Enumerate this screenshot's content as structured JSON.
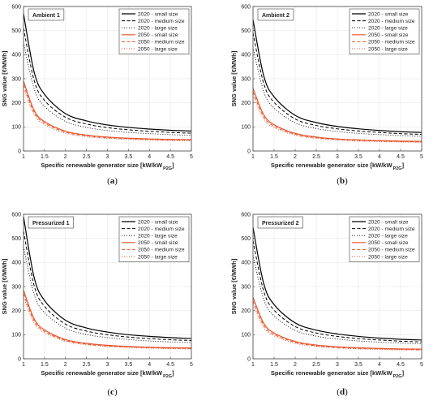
{
  "colors": {
    "series_2020": "#000000",
    "series_2050": "#e8532b",
    "frame": "#444444",
    "grid": "#e3e3e3"
  },
  "panels": [
    {
      "caption": {
        "open": "(",
        "letter": "a",
        "close": ")"
      },
      "chart_data": {
        "type": "line",
        "title": "Ambient 1",
        "xlabel": "Specific renewable generator size [kW/kW",
        "xlabel_sub": "P2G",
        "xlabel_close": "]",
        "ylabel": "SNG value [€/MWh]",
        "xlim": [
          1,
          5
        ],
        "ylim": [
          0,
          600
        ],
        "xticks": [
          "1",
          "1.5",
          "2",
          "2.5",
          "3",
          "3.5",
          "4",
          "4.5",
          "5"
        ],
        "yticks": [
          "0",
          "100",
          "200",
          "300",
          "400",
          "500",
          "600"
        ],
        "grid": true,
        "legend_position": "top-right",
        "x": [
          1,
          1.25,
          1.5,
          2,
          2.5,
          3,
          3.5,
          4,
          4.5,
          5
        ],
        "series": [
          {
            "name": "2020 - small size",
            "values": [
              570,
              330,
              235,
              155,
              125,
              108,
              98,
              91,
              86,
              83
            ]
          },
          {
            "name": "2020 - medium size",
            "values": [
              510,
              295,
              210,
              140,
              112,
              97,
              88,
              82,
              77,
              74
            ]
          },
          {
            "name": "2020 - large size",
            "values": [
              450,
              260,
              185,
              123,
              98,
              85,
              77,
              72,
              68,
              65
            ]
          },
          {
            "name": "2050 - small size",
            "values": [
              290,
              170,
              122,
              82,
              66,
              58,
              53,
              50,
              48,
              47
            ]
          },
          {
            "name": "2050 - medium size",
            "values": [
              275,
              161,
              116,
              78,
              63,
              55,
              51,
              48,
              46,
              45
            ]
          },
          {
            "name": "2050 - large size",
            "values": [
              260,
              152,
              109,
              73,
              59,
              52,
              48,
              45,
              43,
              42
            ]
          }
        ]
      }
    },
    {
      "caption": {
        "open": "(",
        "letter": "b",
        "close": ")"
      },
      "chart_data": {
        "type": "line",
        "title": "Ambient 2",
        "xlabel": "Specific renewable generator size [kW/kW",
        "xlabel_sub": "P2G",
        "xlabel_close": "]",
        "ylabel": "SNG value [€/MWh]",
        "xlim": [
          1,
          5
        ],
        "ylim": [
          0,
          600
        ],
        "xticks": [
          "1",
          "1.5",
          "2",
          "2.5",
          "3",
          "3.5",
          "4",
          "4.5",
          "5"
        ],
        "yticks": [
          "0",
          "100",
          "200",
          "300",
          "400",
          "500",
          "600"
        ],
        "grid": true,
        "legend_position": "top-right",
        "x": [
          1,
          1.25,
          1.5,
          2,
          2.5,
          3,
          3.5,
          4,
          4.5,
          5
        ],
        "series": [
          {
            "name": "2020 - small size",
            "values": [
              545,
              315,
              225,
              148,
              118,
              102,
              92,
              85,
              80,
              77
            ]
          },
          {
            "name": "2020 - medium size",
            "values": [
              490,
              283,
              202,
              133,
              106,
              92,
              83,
              77,
              72,
              69
            ]
          },
          {
            "name": "2020 - large size",
            "values": [
              430,
              249,
              178,
              117,
              93,
              81,
              73,
              68,
              64,
              61
            ]
          },
          {
            "name": "2050 - small size",
            "values": [
              260,
              152,
              109,
              73,
              58,
              50,
              46,
              43,
              41,
              40
            ]
          },
          {
            "name": "2050 - medium size",
            "values": [
              245,
              143,
              103,
              69,
              55,
              48,
              44,
              41,
              39,
              38
            ]
          },
          {
            "name": "2050 - large size",
            "values": [
              230,
              134,
              97,
              65,
              52,
              45,
              41,
              39,
              37,
              36
            ]
          }
        ]
      }
    },
    {
      "caption": {
        "open": "(",
        "letter": "c",
        "close": ")"
      },
      "chart_data": {
        "type": "line",
        "title": "Pressurized 1",
        "xlabel": "Specific renewable generator size [kW/kW",
        "xlabel_sub": "P2G",
        "xlabel_close": "]",
        "ylabel": "SNG value [€/MWh]",
        "xlim": [
          1,
          5
        ],
        "ylim": [
          0,
          600
        ],
        "xticks": [
          "1",
          "1.5",
          "2",
          "2.5",
          "3",
          "3.5",
          "4",
          "4.5",
          "5"
        ],
        "yticks": [
          "0",
          "100",
          "200",
          "300",
          "400",
          "500",
          "600"
        ],
        "grid": true,
        "legend_position": "top-right",
        "x": [
          1,
          1.25,
          1.5,
          2,
          2.5,
          3,
          3.5,
          4,
          4.5,
          5
        ],
        "series": [
          {
            "name": "2020 - small size",
            "values": [
              590,
              340,
              242,
              160,
              128,
              111,
              100,
              93,
              88,
              84
            ]
          },
          {
            "name": "2020 - medium size",
            "values": [
              530,
              306,
              218,
              144,
              115,
              100,
              90,
              84,
              79,
              76
            ]
          },
          {
            "name": "2020 - large size",
            "values": [
              465,
              269,
              192,
              127,
              101,
              88,
              80,
              74,
              70,
              67
            ]
          },
          {
            "name": "2050 - small size",
            "values": [
              285,
              167,
              120,
              80,
              64,
              56,
              51,
              48,
              46,
              45
            ]
          },
          {
            "name": "2050 - medium size",
            "values": [
              270,
              158,
              114,
              76,
              61,
              53,
              49,
              46,
              44,
              43
            ]
          },
          {
            "name": "2050 - large size",
            "values": [
              255,
              149,
              108,
              72,
              58,
              51,
              47,
              44,
              42,
              41
            ]
          }
        ]
      }
    },
    {
      "caption": {
        "open": "(",
        "letter": "d",
        "close": ")"
      },
      "chart_data": {
        "type": "line",
        "title": "Pressurized 2",
        "xlabel": "Specific renewable generator size [kW/kW",
        "xlabel_sub": "P2G",
        "xlabel_close": "]",
        "ylabel": "SNG value [€/MWh]",
        "xlim": [
          1,
          5
        ],
        "ylim": [
          0,
          600
        ],
        "xticks": [
          "1",
          "1.5",
          "2",
          "2.5",
          "3",
          "3.5",
          "4",
          "4.5",
          "5"
        ],
        "yticks": [
          "0",
          "100",
          "200",
          "300",
          "400",
          "500",
          "600"
        ],
        "grid": true,
        "legend_position": "top-right",
        "x": [
          1,
          1.25,
          1.5,
          2,
          2.5,
          3,
          3.5,
          4,
          4.5,
          5
        ],
        "series": [
          {
            "name": "2020 - small size",
            "values": [
              545,
              315,
              225,
              149,
              119,
              103,
              93,
              86,
              81,
              78
            ]
          },
          {
            "name": "2020 - medium size",
            "values": [
              490,
              283,
              202,
              134,
              107,
              93,
              84,
              78,
              73,
              70
            ]
          },
          {
            "name": "2020 - large size",
            "values": [
              430,
              249,
              178,
              118,
              94,
              82,
              74,
              69,
              65,
              62
            ]
          },
          {
            "name": "2050 - small size",
            "values": [
              255,
              149,
              107,
              72,
              57,
              50,
              46,
              43,
              41,
              40
            ]
          },
          {
            "name": "2050 - medium size",
            "values": [
              240,
              140,
              101,
              68,
              54,
              47,
              43,
              41,
              39,
              38
            ]
          },
          {
            "name": "2050 - large size",
            "values": [
              225,
              131,
              95,
              64,
              51,
              45,
              41,
              39,
              37,
              36
            ]
          }
        ]
      }
    }
  ]
}
